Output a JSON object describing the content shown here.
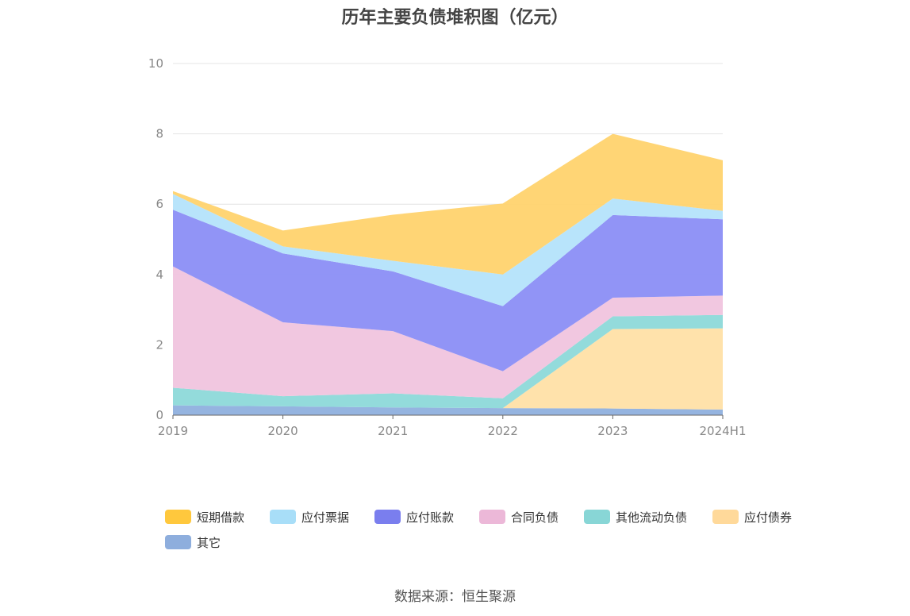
{
  "title": "历年主要负债堆积图（亿元）",
  "source": "数据来源：恒生聚源",
  "chart_data": {
    "type": "area",
    "stacked": true,
    "title": "历年主要负债堆积图（亿元）",
    "xlabel": "",
    "ylabel": "",
    "categories": [
      "2019",
      "2020",
      "2021",
      "2022",
      "2023",
      "2024H1"
    ],
    "ylim": [
      0,
      10
    ],
    "yticks": [
      0,
      2,
      4,
      6,
      8,
      10
    ],
    "grid": true,
    "legend_position": "bottom",
    "series": [
      {
        "name": "其它",
        "color": "#8fb0de",
        "values": [
          0.28,
          0.25,
          0.22,
          0.2,
          0.19,
          0.16
        ]
      },
      {
        "name": "应付债券",
        "color": "#ffe0a6",
        "values": [
          0.0,
          0.0,
          0.0,
          0.0,
          2.26,
          2.31
        ]
      },
      {
        "name": "其他流动负债",
        "color": "#8dd9d9",
        "values": [
          0.5,
          0.29,
          0.4,
          0.28,
          0.36,
          0.38
        ]
      },
      {
        "name": "合同负债",
        "color": "#f0c4de",
        "values": [
          3.45,
          2.1,
          1.77,
          0.77,
          0.53,
          0.55
        ]
      },
      {
        "name": "应付账款",
        "color": "#8b8ef5",
        "values": [
          1.61,
          1.96,
          1.7,
          1.85,
          2.35,
          2.17
        ]
      },
      {
        "name": "应付票据",
        "color": "#b4e3fb",
        "values": [
          0.45,
          0.2,
          0.3,
          0.9,
          0.47,
          0.24
        ]
      },
      {
        "name": "短期借款",
        "color": "#ffd36e",
        "values": [
          0.08,
          0.45,
          1.31,
          2.02,
          1.84,
          1.44
        ]
      }
    ],
    "legend": [
      {
        "name": "短期借款",
        "color": "#ffc83d"
      },
      {
        "name": "应付票据",
        "color": "#a8def8"
      },
      {
        "name": "应付账款",
        "color": "#7a7eee"
      },
      {
        "name": "合同负债",
        "color": "#ecb8d8"
      },
      {
        "name": "其他流动负债",
        "color": "#88d6d6"
      },
      {
        "name": "应付债券",
        "color": "#ffd99a"
      },
      {
        "name": "其它",
        "color": "#8eaedd"
      }
    ]
  }
}
